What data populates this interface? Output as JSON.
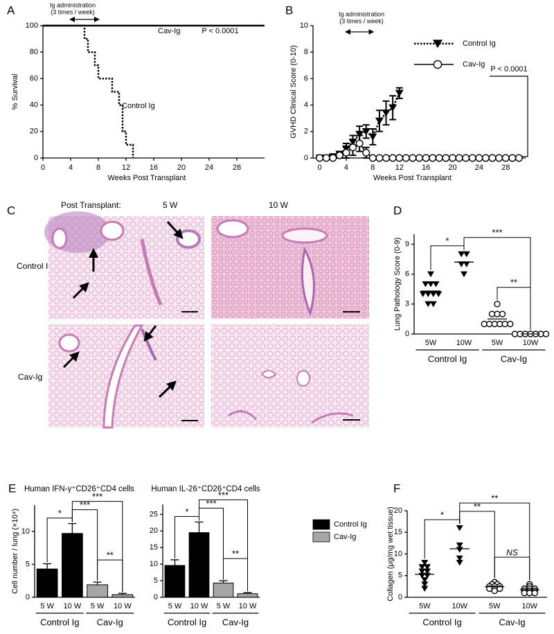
{
  "chart_data": [
    {
      "panel": "A",
      "type": "step",
      "ylabel": "% Survival",
      "xlabel": "Weeks Post Transplant",
      "xlim": [
        0,
        32
      ],
      "xticks": [
        0,
        4,
        8,
        12,
        16,
        20,
        24,
        28
      ],
      "ylim": [
        0,
        100
      ],
      "yticks": [
        0,
        20,
        40,
        60,
        80,
        100
      ],
      "annotations": [
        "Ig administration",
        "(3 times / week)",
        "P < 0.0001"
      ],
      "admin_weeks": [
        4,
        8
      ],
      "series": [
        {
          "name": "Cav-Ig",
          "color": "#000000",
          "style": "solid",
          "x": [
            0,
            32
          ],
          "values": [
            100,
            100
          ]
        },
        {
          "name": "Control Ig",
          "color": "#000000",
          "style": "dotted",
          "x": [
            0,
            6,
            6.5,
            7.5,
            8,
            9,
            10,
            11,
            11.5,
            12,
            12.5,
            13
          ],
          "values": [
            100,
            90,
            80,
            70,
            60,
            60,
            50,
            40,
            20,
            10,
            10,
            0
          ]
        }
      ]
    },
    {
      "panel": "B",
      "type": "errorline",
      "ylabel": "GVHD Clinical Score (0-10)",
      "xlabel": "Weeks Post Transplant",
      "xlim": [
        -1,
        31
      ],
      "xticks": [
        0,
        4,
        8,
        12,
        16,
        20,
        24,
        28
      ],
      "ylim": [
        0,
        10
      ],
      "yticks": [
        0,
        2,
        4,
        6,
        8,
        10
      ],
      "annotations": [
        "Ig administration",
        "(3 times / week)",
        "P < 0.0001"
      ],
      "admin_weeks": [
        4,
        8
      ],
      "series": [
        {
          "name": "Control Ig",
          "color": "#000000",
          "style": "dotted",
          "marker": "triangle",
          "x": [
            0,
            1,
            2,
            3,
            4,
            5,
            6,
            7,
            8,
            9,
            10,
            11,
            12
          ],
          "values": [
            0,
            0,
            0.1,
            0.3,
            0.7,
            1.2,
            1.8,
            2.0,
            1.6,
            2.8,
            3.4,
            3.8,
            4.9
          ],
          "errors": [
            0,
            0,
            0.1,
            0.2,
            0.4,
            0.5,
            0.6,
            0.5,
            0.6,
            0.8,
            0.9,
            0.9,
            0.4
          ]
        },
        {
          "name": "Cav-Ig",
          "color": "#000000",
          "style": "solid",
          "marker": "circle",
          "x": [
            0,
            1,
            2,
            3,
            4,
            5,
            6,
            7,
            8,
            9,
            10,
            11,
            12,
            13,
            14,
            15,
            16,
            17,
            18,
            19,
            20,
            21,
            22,
            23,
            24,
            25,
            26,
            27,
            28,
            29,
            30
          ],
          "values": [
            0,
            0,
            0,
            0.2,
            0.4,
            0.8,
            1.1,
            0.4,
            0,
            0,
            0,
            0,
            0,
            0,
            0,
            0,
            0,
            0,
            0,
            0,
            0,
            0,
            0,
            0,
            0,
            0,
            0,
            0,
            0,
            0,
            0
          ],
          "errors": [
            0,
            0,
            0.1,
            0.2,
            0.4,
            0.6,
            0.6,
            0.4,
            0,
            0,
            0,
            0,
            0,
            0,
            0,
            0,
            0,
            0,
            0,
            0,
            0,
            0,
            0,
            0,
            0,
            0,
            0,
            0,
            0,
            0,
            0
          ]
        }
      ]
    },
    {
      "panel": "D",
      "type": "dotplot",
      "ylabel": "Lung Pathology Score (0-9)",
      "ylim": [
        0,
        10
      ],
      "yticks": [
        0,
        3,
        6,
        9
      ],
      "categories": [
        "5W",
        "10W",
        "5W",
        "10W"
      ],
      "groups": [
        {
          "name": "Control Ig",
          "marker": "triangle",
          "points": [
            [
              6,
              5,
              5,
              5,
              4,
              4,
              4,
              4,
              3,
              3
            ],
            [
              8,
              8,
              7,
              7,
              6
            ]
          ],
          "means": [
            4.3,
            7.2
          ]
        },
        {
          "name": "Cav-Ig",
          "marker": "circle",
          "points": [
            [
              3,
              2,
              2,
              2,
              1,
              1,
              1,
              1,
              1,
              1
            ],
            [
              0,
              0,
              0,
              0,
              0,
              0,
              0
            ]
          ],
          "means": [
            1.5,
            0
          ]
        }
      ],
      "significance": [
        {
          "between": [
            0,
            1
          ],
          "label": "*"
        },
        {
          "between": [
            1,
            3
          ],
          "label": "***"
        },
        {
          "between": [
            2,
            3
          ],
          "label": "**"
        }
      ]
    },
    {
      "panel": "E",
      "type": "bar",
      "title": "Human IFN-γ⁺CD26⁺CD4 cells",
      "ylabel": "Cell number / lung (×10⁴)",
      "ylim": [
        0,
        14
      ],
      "yticks": [
        0,
        5,
        10
      ],
      "categories": [
        "5 W",
        "10 W",
        "5 W",
        "10 W"
      ],
      "values": [
        4.3,
        9.7,
        1.9,
        0.4
      ],
      "errors": [
        0.8,
        1.5,
        0.4,
        0.2
      ],
      "colors": [
        "#000000",
        "#000000",
        "#a6a6a6",
        "#a6a6a6"
      ],
      "groups": [
        "Control Ig",
        "Cav-Ig"
      ],
      "significance": [
        {
          "between": [
            0,
            1
          ],
          "label": "*"
        },
        {
          "between": [
            1,
            2
          ],
          "label": "***"
        },
        {
          "between": [
            1,
            3
          ],
          "label": "***"
        },
        {
          "between": [
            2,
            3
          ],
          "label": "**"
        }
      ]
    },
    {
      "type": "bar",
      "title": "Human IL-26⁺CD26⁺CD4 cells",
      "ylim": [
        0,
        28
      ],
      "yticks": [
        0,
        5,
        10,
        15,
        20,
        25
      ],
      "categories": [
        "5 W",
        "10 W",
        "5 W",
        "10 W"
      ],
      "values": [
        9.6,
        19.5,
        4.3,
        1.1
      ],
      "errors": [
        1.7,
        3.2,
        0.7,
        0.3
      ],
      "colors": [
        "#000000",
        "#000000",
        "#a6a6a6",
        "#a6a6a6"
      ],
      "groups": [
        "Control Ig",
        "Cav-Ig"
      ],
      "legend": [
        {
          "name": "Control Ig",
          "color": "#000000"
        },
        {
          "name": "Cav-Ig",
          "color": "#a6a6a6"
        }
      ],
      "significance": [
        {
          "between": [
            0,
            1
          ],
          "label": "*"
        },
        {
          "between": [
            1,
            2
          ],
          "label": "***"
        },
        {
          "between": [
            1,
            3
          ],
          "label": "***"
        },
        {
          "between": [
            2,
            3
          ],
          "label": "**"
        }
      ]
    },
    {
      "panel": "F",
      "type": "dotplot",
      "ylabel": "Collagen (μg/mg wet tissue)",
      "ylim": [
        0,
        20
      ],
      "yticks": [
        0,
        5,
        10,
        15,
        20
      ],
      "categories": [
        "5W",
        "10W",
        "5W",
        "10W"
      ],
      "groups": [
        {
          "name": "Control Ig",
          "marker": "triangle",
          "points": [
            [
              8,
              7,
              7,
              6,
              6,
              5,
              5,
              4,
              3,
              2
            ],
            [
              16,
              12,
              11,
              9,
              8
            ]
          ],
          "means": [
            5.3,
            11.2
          ]
        },
        {
          "name": "Cav-Ig",
          "marker": "circle",
          "points": [
            [
              3.5,
              3,
              3,
              2.5,
              2.5,
              2.5,
              2,
              2,
              2,
              1.5
            ],
            [
              3,
              2.5,
              2,
              2,
              2,
              1.5,
              1.5,
              1.5,
              1,
              1,
              1
            ]
          ],
          "means": [
            2.45,
            1.73
          ]
        }
      ],
      "significance": [
        {
          "between": [
            0,
            1
          ],
          "label": "*"
        },
        {
          "between": [
            1,
            2
          ],
          "label": "**"
        },
        {
          "between": [
            1,
            3
          ],
          "label": "**"
        },
        {
          "between": [
            2,
            3
          ],
          "label": "NS"
        }
      ]
    }
  ],
  "histology": {
    "panel": "C",
    "prefix": "Post Transplant:",
    "columns": [
      "5 W",
      "10 W"
    ],
    "rows": [
      "Control Ig",
      "Cav-Ig"
    ]
  }
}
